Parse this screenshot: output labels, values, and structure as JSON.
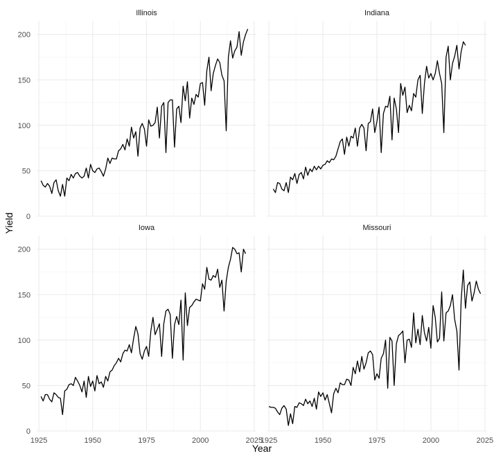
{
  "chart_data": {
    "type": "line",
    "xlabel": "Year",
    "ylabel": "Yield",
    "xlim": [
      1924,
      2026
    ],
    "ylim": [
      0,
      215
    ],
    "x_ticks": [
      1925,
      1950,
      1975,
      2000,
      2025
    ],
    "y_ticks": [
      0,
      50,
      100,
      150,
      200
    ],
    "grid": true,
    "theme": "minimal",
    "line_color": "#000000",
    "panels": [
      {
        "name": "Illinois",
        "x_start": 1926,
        "values": [
          39,
          34,
          32,
          36,
          33,
          25,
          37,
          40,
          28,
          22,
          35,
          22,
          42,
          39,
          46,
          42,
          47,
          48,
          44,
          42,
          44,
          53,
          42,
          57,
          50,
          48,
          52,
          53,
          49,
          44,
          52,
          64,
          58,
          64,
          63,
          63,
          72,
          74,
          79,
          73,
          85,
          77,
          98,
          86,
          93,
          66,
          97,
          102,
          96,
          77,
          106,
          99,
          100,
          103,
          120,
          86,
          121,
          125,
          70,
          125,
          128,
          128,
          76,
          118,
          121,
          103,
          143,
          127,
          148,
          108,
          130,
          123,
          134,
          131,
          146,
          147,
          122,
          160,
          175,
          138,
          157,
          166,
          173,
          169,
          155,
          149,
          94,
          175,
          193,
          174,
          182,
          186,
          203,
          177,
          192,
          200,
          206
        ]
      },
      {
        "name": "Indiana",
        "x_start": 1927,
        "values": [
          30,
          26,
          37,
          36,
          30,
          28,
          37,
          26,
          43,
          40,
          47,
          36,
          46,
          48,
          41,
          54,
          45,
          52,
          49,
          55,
          51,
          55,
          52,
          56,
          57,
          61,
          59,
          63,
          62,
          66,
          74,
          82,
          85,
          68,
          87,
          77,
          88,
          86,
          97,
          77,
          97,
          101,
          97,
          72,
          102,
          104,
          118,
          92,
          104,
          120,
          70,
          113,
          121,
          120,
          132,
          84,
          130,
          118,
          92,
          146,
          133,
          142,
          114,
          122,
          116,
          135,
          131,
          150,
          155,
          113,
          146,
          165,
          152,
          157,
          150,
          157,
          171,
          157,
          146,
          92,
          175,
          187,
          150,
          168,
          176,
          188,
          162,
          181,
          192,
          188
        ]
      },
      {
        "name": "Iowa",
        "x_start": 1926,
        "values": [
          38,
          33,
          40,
          40,
          35,
          32,
          42,
          40,
          37,
          36,
          18,
          44,
          46,
          51,
          52,
          50,
          59,
          55,
          50,
          43,
          55,
          37,
          60,
          49,
          55,
          44,
          61,
          52,
          54,
          48,
          60,
          55,
          65,
          67,
          72,
          75,
          80,
          76,
          85,
          89,
          88,
          95,
          86,
          102,
          115,
          107,
          85,
          79,
          88,
          93,
          82,
          110,
          125,
          106,
          112,
          118,
          82,
          118,
          132,
          134,
          128,
          80,
          117,
          126,
          117,
          144,
          78,
          152,
          116,
          136,
          138,
          142,
          145,
          144,
          143,
          162,
          156,
          180,
          167,
          166,
          171,
          169,
          178,
          158,
          166,
          132,
          165,
          180,
          189,
          202,
          200,
          195,
          196,
          175,
          200,
          195
        ]
      },
      {
        "name": "Missouri",
        "x_start": 1925,
        "values": [
          27,
          26,
          26,
          25,
          21,
          18,
          25,
          28,
          24,
          6,
          19,
          8,
          27,
          26,
          31,
          30,
          28,
          35,
          30,
          33,
          27,
          36,
          24,
          43,
          38,
          42,
          34,
          40,
          30,
          20,
          41,
          47,
          42,
          53,
          51,
          51,
          57,
          56,
          50,
          70,
          63,
          77,
          65,
          82,
          68,
          75,
          86,
          88,
          84,
          56,
          63,
          58,
          80,
          85,
          100,
          47,
          103,
          99,
          50,
          96,
          105,
          107,
          110,
          75,
          100,
          101,
          92,
          130,
          97,
          112,
          95,
          127,
          108,
          99,
          114,
          91,
          138,
          125,
          98,
          102,
          153,
          99,
          130,
          132,
          138,
          150,
          123,
          110,
          67,
          144,
          177,
          135,
          160,
          164,
          143,
          152,
          165,
          156,
          151
        ]
      }
    ]
  }
}
